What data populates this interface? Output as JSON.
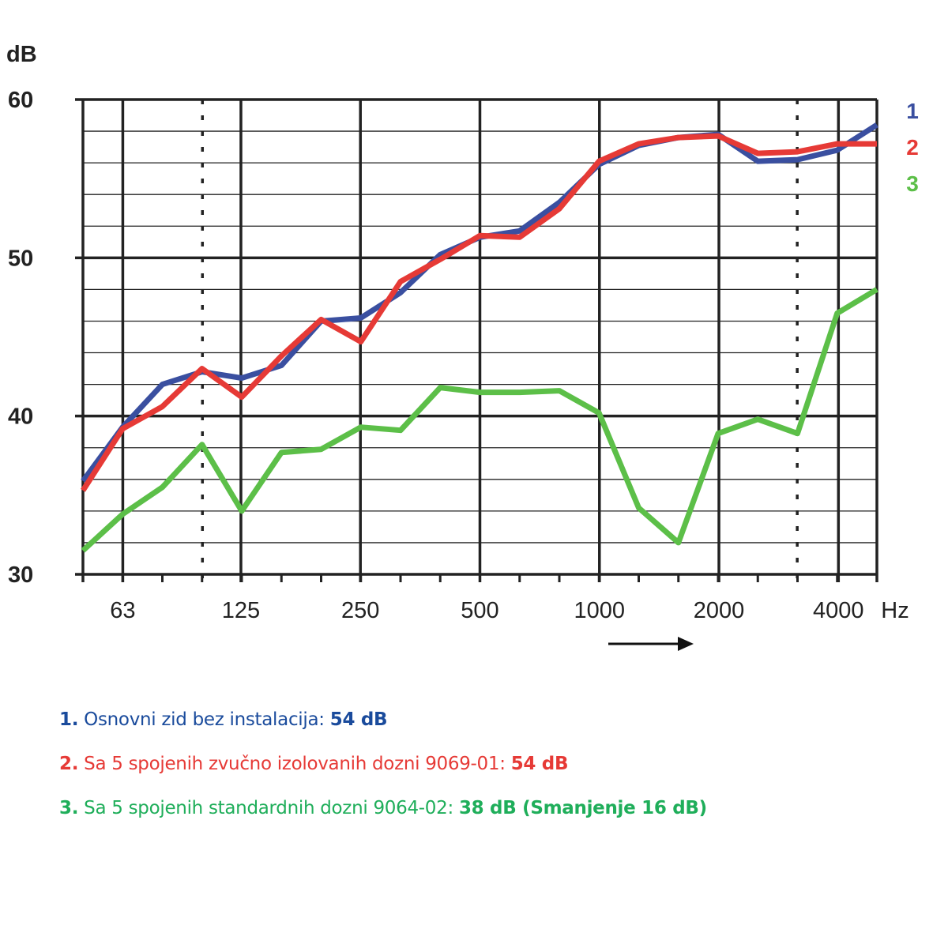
{
  "chart_data": {
    "type": "line",
    "ylabel": "dB",
    "xunit": "Hz",
    "ylim": [
      30,
      60
    ],
    "yticks": [
      "30",
      "40",
      "50",
      "60"
    ],
    "x": [
      50,
      63,
      80,
      100,
      125,
      160,
      200,
      250,
      315,
      400,
      500,
      630,
      800,
      1000,
      1250,
      1600,
      2000,
      2500,
      3150,
      4000,
      5000
    ],
    "xticklabels": [
      "63",
      "125",
      "250",
      "500",
      "1000",
      "2000",
      "4000"
    ],
    "xticklabel_values": [
      63,
      125,
      250,
      500,
      1000,
      2000,
      4000
    ],
    "dotted_gridlines_at": [
      100,
      3150
    ],
    "grid": true,
    "series": [
      {
        "name": "1",
        "color": "#3a4fa0",
        "values": [
          35.9,
          39.3,
          42.0,
          42.8,
          42.4,
          43.2,
          46.0,
          46.2,
          47.8,
          50.2,
          51.3,
          51.7,
          53.5,
          55.9,
          57.1,
          57.6,
          57.8,
          56.1,
          56.2,
          56.8,
          58.4
        ]
      },
      {
        "name": "2",
        "color": "#e63a36",
        "values": [
          35.3,
          39.2,
          40.6,
          43.0,
          41.2,
          43.8,
          46.1,
          44.7,
          48.5,
          49.9,
          51.4,
          51.3,
          53.1,
          56.1,
          57.2,
          57.6,
          57.7,
          56.6,
          56.7,
          57.2,
          57.2
        ]
      },
      {
        "name": "3",
        "color": "#5cbf48",
        "values": [
          31.5,
          33.8,
          35.5,
          38.2,
          34.0,
          37.7,
          37.9,
          39.3,
          39.1,
          41.8,
          41.5,
          41.5,
          41.6,
          40.2,
          34.2,
          32.0,
          38.9,
          39.8,
          38.9,
          46.5,
          48.0
        ]
      }
    ]
  },
  "legend": [
    {
      "num": "1.",
      "text": " Osnovni zid bez instalacija: ",
      "value": "54 dB",
      "color": "#1a4b9c"
    },
    {
      "num": "2.",
      "text": " Sa 5 spojenih zvučno izolovanih dozni 9069-01: ",
      "value": "54 dB",
      "color": "#e63a36"
    },
    {
      "num": "3.",
      "text": " Sa 5 spojenih standardnih dozni 9064-02: ",
      "value": "38 dB (Smanjenje 16 dB)",
      "color": "#1fae5a"
    }
  ]
}
